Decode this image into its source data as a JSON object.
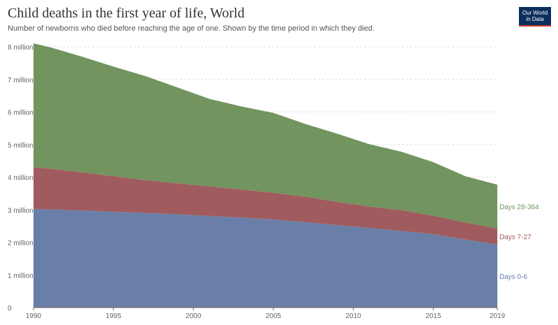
{
  "header": {
    "title": "Child deaths in the first year of life, World",
    "subtitle": "Number of newborns who died before reaching the age of one. Shown by the time period in which they died.",
    "logo_line1": "Our World",
    "logo_line2": "in Data"
  },
  "colors": {
    "days_0_6": "#6a7fa8",
    "days_7_27": "#a05b5e",
    "days_28_364": "#72945f",
    "grid": "#dddddd",
    "axis": "#666666"
  },
  "chart_data": {
    "type": "area",
    "stacked": true,
    "x": [
      1990,
      1991,
      1993,
      1995,
      1997,
      1999,
      2001,
      2003,
      2005,
      2007,
      2009,
      2011,
      2013,
      2015,
      2017,
      2019
    ],
    "series": [
      {
        "name": "Days 0-6",
        "color": "#6a7fa8",
        "values": [
          3.02,
          3.01,
          2.98,
          2.94,
          2.9,
          2.86,
          2.81,
          2.76,
          2.7,
          2.62,
          2.53,
          2.44,
          2.35,
          2.25,
          2.09,
          1.93
        ]
      },
      {
        "name": "Days 7-27",
        "color": "#a05b5e",
        "values": [
          1.28,
          1.25,
          1.17,
          1.09,
          1.01,
          0.95,
          0.91,
          0.86,
          0.82,
          0.78,
          0.71,
          0.66,
          0.64,
          0.57,
          0.52,
          0.5
        ]
      },
      {
        "name": "Days 28-364",
        "color": "#72945f",
        "values": [
          3.8,
          3.73,
          3.55,
          3.36,
          3.19,
          2.94,
          2.68,
          2.55,
          2.45,
          2.23,
          2.09,
          1.91,
          1.79,
          1.64,
          1.42,
          1.34
        ]
      }
    ],
    "x_ticks": [
      "1990",
      "1995",
      "2000",
      "2005",
      "2010",
      "2015",
      "2019"
    ],
    "y_ticks": [
      "0",
      "1 million",
      "2 million",
      "3 million",
      "4 million",
      "5 million",
      "6 million",
      "7 million",
      "8 million"
    ],
    "xlim": [
      1990,
      2019
    ],
    "ylim": [
      0,
      8
    ],
    "grid": true,
    "legend": "right-end labels"
  }
}
